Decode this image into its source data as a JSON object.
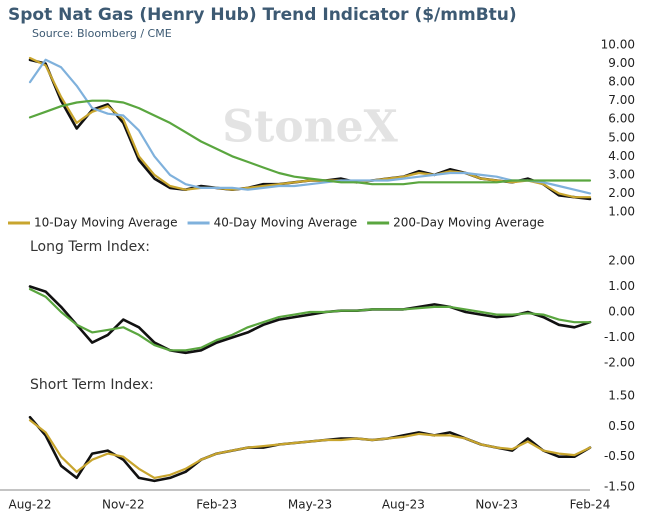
{
  "chart_data": [
    {
      "type": "line",
      "title": "Spot Nat Gas (Henry Hub) Trend Indicator ($/mmBtu)",
      "subtitle": "Source: Bloomberg / CME",
      "watermark": "StoneX",
      "ylim": [
        1,
        10
      ],
      "yticks": [
        {
          "value": 1,
          "label": "1.00"
        },
        {
          "value": 2,
          "label": "2.00"
        },
        {
          "value": 3,
          "label": "3.00"
        },
        {
          "value": 4,
          "label": "4.00"
        },
        {
          "value": 5,
          "label": "5.00"
        },
        {
          "value": 6,
          "label": "6.00"
        },
        {
          "value": 7,
          "label": "7.00"
        },
        {
          "value": 8,
          "label": "8.00"
        },
        {
          "value": 9,
          "label": "9.00"
        },
        {
          "value": 10,
          "label": "10.00"
        }
      ],
      "legend": "bottom",
      "series": [
        {
          "color": "#111111",
          "values": [
            9.2,
            9.0,
            7.0,
            5.5,
            6.5,
            6.8,
            5.8,
            3.8,
            2.8,
            2.3,
            2.2,
            2.4,
            2.3,
            2.2,
            2.3,
            2.5,
            2.5,
            2.6,
            2.7,
            2.7,
            2.8,
            2.6,
            2.7,
            2.8,
            2.9,
            3.2,
            3.0,
            3.3,
            3.1,
            2.8,
            2.7,
            2.6,
            2.8,
            2.5,
            1.9,
            1.8,
            1.7
          ]
        },
        {
          "name": "10-Day Moving Average",
          "color": "#c8a52e",
          "values": [
            9.3,
            8.9,
            7.2,
            5.8,
            6.4,
            6.7,
            6.0,
            4.0,
            3.0,
            2.4,
            2.2,
            2.3,
            2.3,
            2.2,
            2.3,
            2.4,
            2.5,
            2.6,
            2.7,
            2.7,
            2.7,
            2.6,
            2.7,
            2.8,
            2.9,
            3.1,
            3.0,
            3.2,
            3.1,
            2.8,
            2.7,
            2.6,
            2.7,
            2.5,
            2.0,
            1.8,
            1.8
          ]
        },
        {
          "name": "40-Day Moving Average",
          "color": "#7fb1dc",
          "values": [
            8.0,
            9.2,
            8.8,
            7.8,
            6.6,
            6.3,
            6.2,
            5.4,
            4.0,
            3.0,
            2.5,
            2.3,
            2.3,
            2.3,
            2.2,
            2.3,
            2.4,
            2.4,
            2.5,
            2.6,
            2.7,
            2.7,
            2.7,
            2.7,
            2.8,
            2.9,
            3.0,
            3.1,
            3.1,
            3.0,
            2.9,
            2.7,
            2.7,
            2.6,
            2.4,
            2.2,
            2.0
          ]
        },
        {
          "name": "200-Day Moving Average",
          "color": "#5aa63f",
          "values": [
            6.1,
            6.4,
            6.7,
            6.9,
            7.0,
            7.0,
            6.9,
            6.6,
            6.2,
            5.8,
            5.3,
            4.8,
            4.4,
            4.0,
            3.7,
            3.4,
            3.1,
            2.9,
            2.8,
            2.7,
            2.6,
            2.6,
            2.5,
            2.5,
            2.5,
            2.6,
            2.6,
            2.6,
            2.6,
            2.6,
            2.6,
            2.7,
            2.7,
            2.7,
            2.7,
            2.7,
            2.7
          ]
        }
      ]
    },
    {
      "type": "line",
      "title": "Long Term Index:",
      "ylim": [
        -2,
        2
      ],
      "yticks": [
        {
          "value": -2,
          "label": "-2.00"
        },
        {
          "value": -1,
          "label": "-1.00"
        },
        {
          "value": 0,
          "label": "0.00"
        },
        {
          "value": 1,
          "label": "1.00"
        },
        {
          "value": 2,
          "label": "2.00"
        }
      ],
      "series": [
        {
          "color": "#111111",
          "values": [
            1.0,
            0.8,
            0.2,
            -0.5,
            -1.2,
            -0.9,
            -0.3,
            -0.6,
            -1.2,
            -1.5,
            -1.6,
            -1.5,
            -1.2,
            -1.0,
            -0.8,
            -0.5,
            -0.3,
            -0.2,
            -0.1,
            0.0,
            0.05,
            0.05,
            0.1,
            0.1,
            0.1,
            0.2,
            0.3,
            0.2,
            0.0,
            -0.1,
            -0.2,
            -0.15,
            0.0,
            -0.2,
            -0.5,
            -0.6,
            -0.4
          ]
        },
        {
          "color": "#5aa63f",
          "values": [
            0.9,
            0.6,
            0.0,
            -0.5,
            -0.8,
            -0.7,
            -0.6,
            -0.9,
            -1.3,
            -1.5,
            -1.5,
            -1.4,
            -1.1,
            -0.9,
            -0.6,
            -0.4,
            -0.2,
            -0.1,
            0.0,
            0.0,
            0.05,
            0.05,
            0.1,
            0.1,
            0.1,
            0.15,
            0.2,
            0.2,
            0.1,
            0.0,
            -0.1,
            -0.1,
            -0.05,
            -0.1,
            -0.3,
            -0.4,
            -0.4
          ]
        }
      ]
    },
    {
      "type": "line",
      "title": "Short Term Index:",
      "ylim": [
        -1.5,
        1.5
      ],
      "yticks": [
        {
          "value": -1.5,
          "label": "-1.50"
        },
        {
          "value": -0.5,
          "label": "-0.50"
        },
        {
          "value": 0.5,
          "label": "0.50"
        },
        {
          "value": 1.5,
          "label": "1.50"
        }
      ],
      "categories": [
        "Aug-22",
        null,
        null,
        null,
        null,
        null,
        "Nov-22",
        null,
        null,
        null,
        null,
        null,
        "Feb-23",
        null,
        null,
        null,
        null,
        null,
        "May-23",
        null,
        null,
        null,
        null,
        null,
        "Aug-23",
        null,
        null,
        null,
        null,
        null,
        "Nov-23",
        null,
        null,
        null,
        null,
        null,
        "Feb-24"
      ],
      "series": [
        {
          "color": "#111111",
          "values": [
            0.8,
            0.2,
            -0.8,
            -1.2,
            -0.4,
            -0.3,
            -0.6,
            -1.2,
            -1.3,
            -1.2,
            -1.0,
            -0.6,
            -0.4,
            -0.3,
            -0.2,
            -0.2,
            -0.1,
            -0.05,
            0.0,
            0.05,
            0.1,
            0.1,
            0.05,
            0.1,
            0.2,
            0.3,
            0.2,
            0.3,
            0.1,
            -0.1,
            -0.2,
            -0.3,
            0.1,
            -0.3,
            -0.5,
            -0.5,
            -0.2
          ]
        },
        {
          "color": "#c8a52e",
          "values": [
            0.7,
            0.3,
            -0.5,
            -1.0,
            -0.6,
            -0.4,
            -0.5,
            -0.9,
            -1.2,
            -1.1,
            -0.9,
            -0.6,
            -0.4,
            -0.3,
            -0.2,
            -0.15,
            -0.1,
            -0.05,
            0.0,
            0.05,
            0.05,
            0.1,
            0.05,
            0.1,
            0.15,
            0.25,
            0.2,
            0.2,
            0.1,
            -0.1,
            -0.2,
            -0.25,
            0.0,
            -0.3,
            -0.4,
            -0.45,
            -0.2
          ]
        }
      ]
    }
  ]
}
